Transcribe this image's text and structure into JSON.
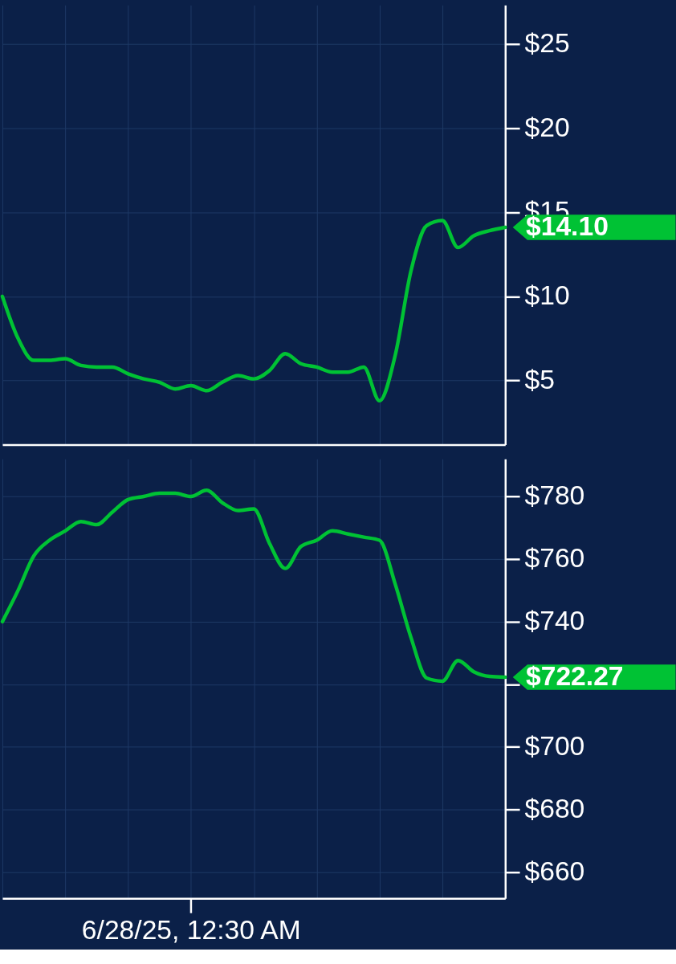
{
  "chart_data": [
    {
      "type": "line",
      "categories": [
        null,
        null,
        null,
        null,
        null,
        null,
        null,
        null,
        null,
        null,
        null,
        null,
        null,
        null,
        null,
        null,
        null,
        null,
        null,
        null,
        null,
        null,
        null,
        null,
        null,
        null,
        null,
        null,
        null,
        null,
        null,
        null,
        null
      ],
      "series": [
        {
          "color": "#00c234",
          "values": [
            10.0,
            7.5,
            6.2,
            6.2,
            6.3,
            5.9,
            5.8,
            5.8,
            5.4,
            5.1,
            4.9,
            4.5,
            4.7,
            4.4,
            4.9,
            5.3,
            5.1,
            5.6,
            6.6,
            6.0,
            5.8,
            5.5,
            5.5,
            5.8,
            3.8,
            6.5,
            11.5,
            14.2,
            14.5,
            12.9,
            13.6,
            13.9,
            14.1
          ],
          "value_labels": [
            null,
            null,
            null,
            null,
            null,
            null,
            null,
            null,
            null,
            null,
            null,
            null,
            null,
            null,
            null,
            null,
            null,
            null,
            null,
            null,
            null,
            null,
            null,
            null,
            null,
            null,
            null,
            null,
            null,
            null,
            null,
            null,
            "$14.10"
          ]
        }
      ],
      "ylim": [
        1.2,
        27.3
      ],
      "yticks": [
        {
          "value": 5,
          "label": "$5"
        },
        {
          "value": 10,
          "label": "$10"
        },
        {
          "value": 15,
          "label": "$15"
        },
        {
          "value": 20,
          "label": "$20"
        },
        {
          "value": 25,
          "label": "$25"
        }
      ],
      "grid": true,
      "legend": false,
      "tick_labels": "y"
    },
    {
      "type": "line",
      "categories": [
        null,
        null,
        null,
        null,
        null,
        null,
        null,
        null,
        null,
        null,
        null,
        null,
        "6/28/25, 12:30 AM",
        null,
        null,
        null,
        null,
        null,
        null,
        null,
        null,
        null,
        null,
        null,
        null,
        null,
        null,
        null,
        null,
        null,
        null,
        null,
        null
      ],
      "series": [
        {
          "color": "#00c234",
          "values": [
            740,
            750,
            761,
            766,
            769,
            772,
            771,
            775,
            779,
            780,
            781,
            781,
            780,
            782,
            778,
            775.5,
            776,
            765,
            757,
            764,
            766,
            769,
            768,
            767,
            766,
            752,
            735,
            722,
            721,
            727.6,
            724,
            722.5,
            722.27
          ],
          "value_labels": [
            null,
            null,
            null,
            null,
            null,
            null,
            null,
            null,
            null,
            null,
            null,
            null,
            null,
            null,
            null,
            null,
            null,
            null,
            null,
            null,
            null,
            null,
            null,
            null,
            null,
            null,
            null,
            null,
            null,
            null,
            null,
            null,
            "$722.27"
          ]
        }
      ],
      "ylim": [
        651.6,
        792
      ],
      "yticks": [
        {
          "value": 660,
          "label": "$660"
        },
        {
          "value": 680,
          "label": "$680"
        },
        {
          "value": 700,
          "label": "$700"
        },
        {
          "value": 720,
          "label": null
        },
        {
          "value": 740,
          "label": "$740"
        },
        {
          "value": 760,
          "label": "$760"
        },
        {
          "value": 780,
          "label": "$780"
        }
      ],
      "grid": true,
      "legend": false
    }
  ]
}
